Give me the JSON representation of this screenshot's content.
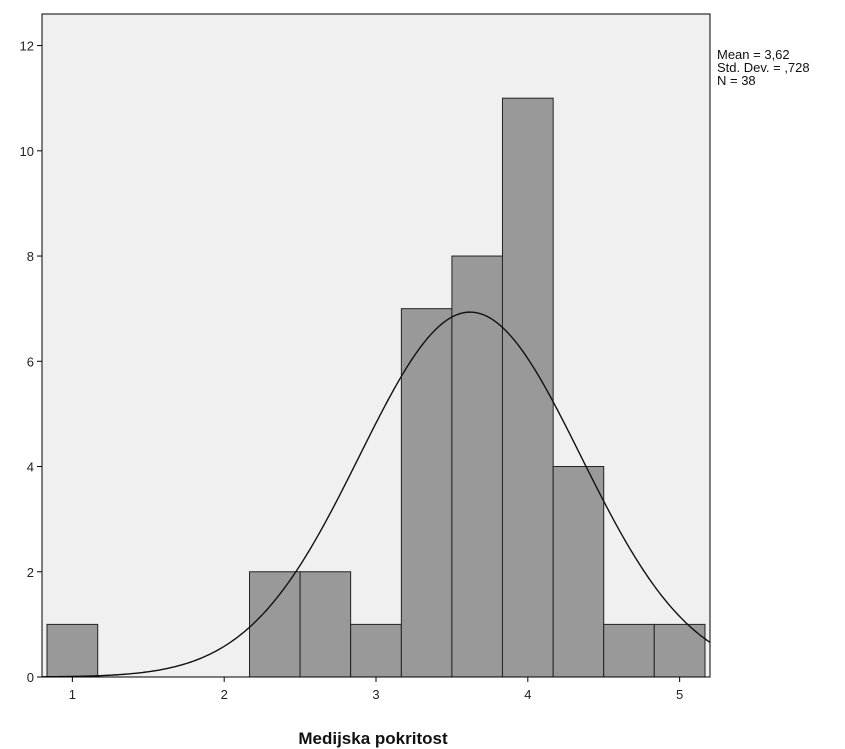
{
  "chart_data": {
    "type": "bar",
    "subtype": "histogram",
    "xlabel": "Medijska pokritost",
    "ylabel": "",
    "xlim": [
      0.8,
      5.2
    ],
    "ylim": [
      0,
      12.6
    ],
    "xticks": [
      1,
      2,
      3,
      4,
      5
    ],
    "xtick_labels": [
      "1",
      "2",
      "3",
      "4",
      "5"
    ],
    "yticks": [
      0,
      2,
      4,
      6,
      8,
      10,
      12
    ],
    "ytick_labels": [
      "0",
      "2",
      "4",
      "6",
      "8",
      "10",
      "12"
    ],
    "bin_width": 0.333,
    "bins": [
      {
        "x0": 0.833,
        "x1": 1.167,
        "count": 1
      },
      {
        "x0": 2.167,
        "x1": 2.5,
        "count": 2
      },
      {
        "x0": 2.5,
        "x1": 2.833,
        "count": 2
      },
      {
        "x0": 2.833,
        "x1": 3.167,
        "count": 1
      },
      {
        "x0": 3.167,
        "x1": 3.5,
        "count": 7
      },
      {
        "x0": 3.5,
        "x1": 3.833,
        "count": 8
      },
      {
        "x0": 3.833,
        "x1": 4.167,
        "count": 11
      },
      {
        "x0": 4.167,
        "x1": 4.5,
        "count": 4
      },
      {
        "x0": 4.5,
        "x1": 4.833,
        "count": 1
      },
      {
        "x0": 4.833,
        "x1": 5.167,
        "count": 1
      }
    ],
    "normal_curve": {
      "mean": 3.62,
      "sd": 0.728,
      "n": 38
    },
    "stats": {
      "mean": "Mean = 3,62",
      "sd": "Std. Dev. = ,728",
      "n": "N = 38"
    },
    "grid": false,
    "colors": {
      "plot_background": "#f0f0f0",
      "bar_fill": "#999999",
      "bar_stroke": "#222222",
      "curve": "#111111"
    }
  }
}
